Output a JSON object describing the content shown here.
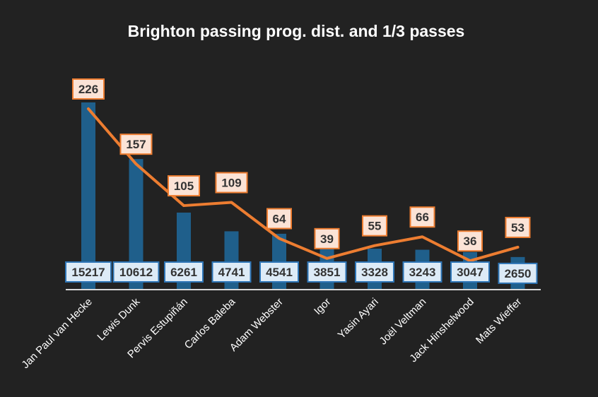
{
  "chart_data": {
    "type": "bar",
    "title": "Brighton passing prog. dist. and 1/3 passes",
    "categories": [
      "Jan Paul van Hecke",
      "Lewis Dunk",
      "Pervis Estupiñán",
      "Carlos Baleba",
      "Adam Webster",
      "Igor",
      "Yasin Ayari",
      "Joël Veltman",
      "Jack Hinshelwood",
      "Mats Wieffer"
    ],
    "series": [
      {
        "type": "bar",
        "values": [
          15217,
          10612,
          6261,
          4741,
          4541,
          3851,
          3328,
          3243,
          3047,
          2650
        ],
        "color": "#1f5f8b"
      },
      {
        "type": "line",
        "values": [
          226,
          157,
          105,
          109,
          64,
          39,
          55,
          66,
          36,
          53
        ],
        "color": "#ed7d31"
      }
    ],
    "ylim_bar": [
      0,
      16000
    ],
    "ylim_line": [
      0,
      240
    ],
    "grid": false,
    "legend": "none"
  }
}
